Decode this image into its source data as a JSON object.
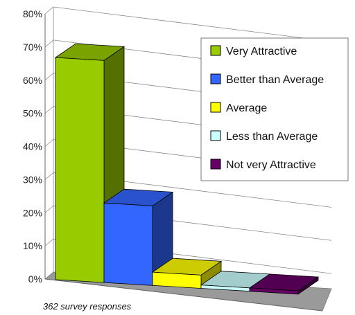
{
  "chart_data": {
    "type": "bar",
    "categories": [
      "Very Attractive",
      "Better than Average",
      "Average",
      "Less than Average",
      "Not very Attractive"
    ],
    "values": [
      67,
      24,
      4,
      1,
      1
    ],
    "colors": [
      "#99cc00",
      "#3366ff",
      "#ffff00",
      "#ccffff",
      "#660066"
    ],
    "ylim": [
      0,
      80
    ],
    "yticks": [
      "0%",
      "10%",
      "20%",
      "30%",
      "40%",
      "50%",
      "60%",
      "70%",
      "80%"
    ],
    "grid": true,
    "style": "3d",
    "legend_placement": "top-right",
    "annotation": "362 survey responses"
  }
}
